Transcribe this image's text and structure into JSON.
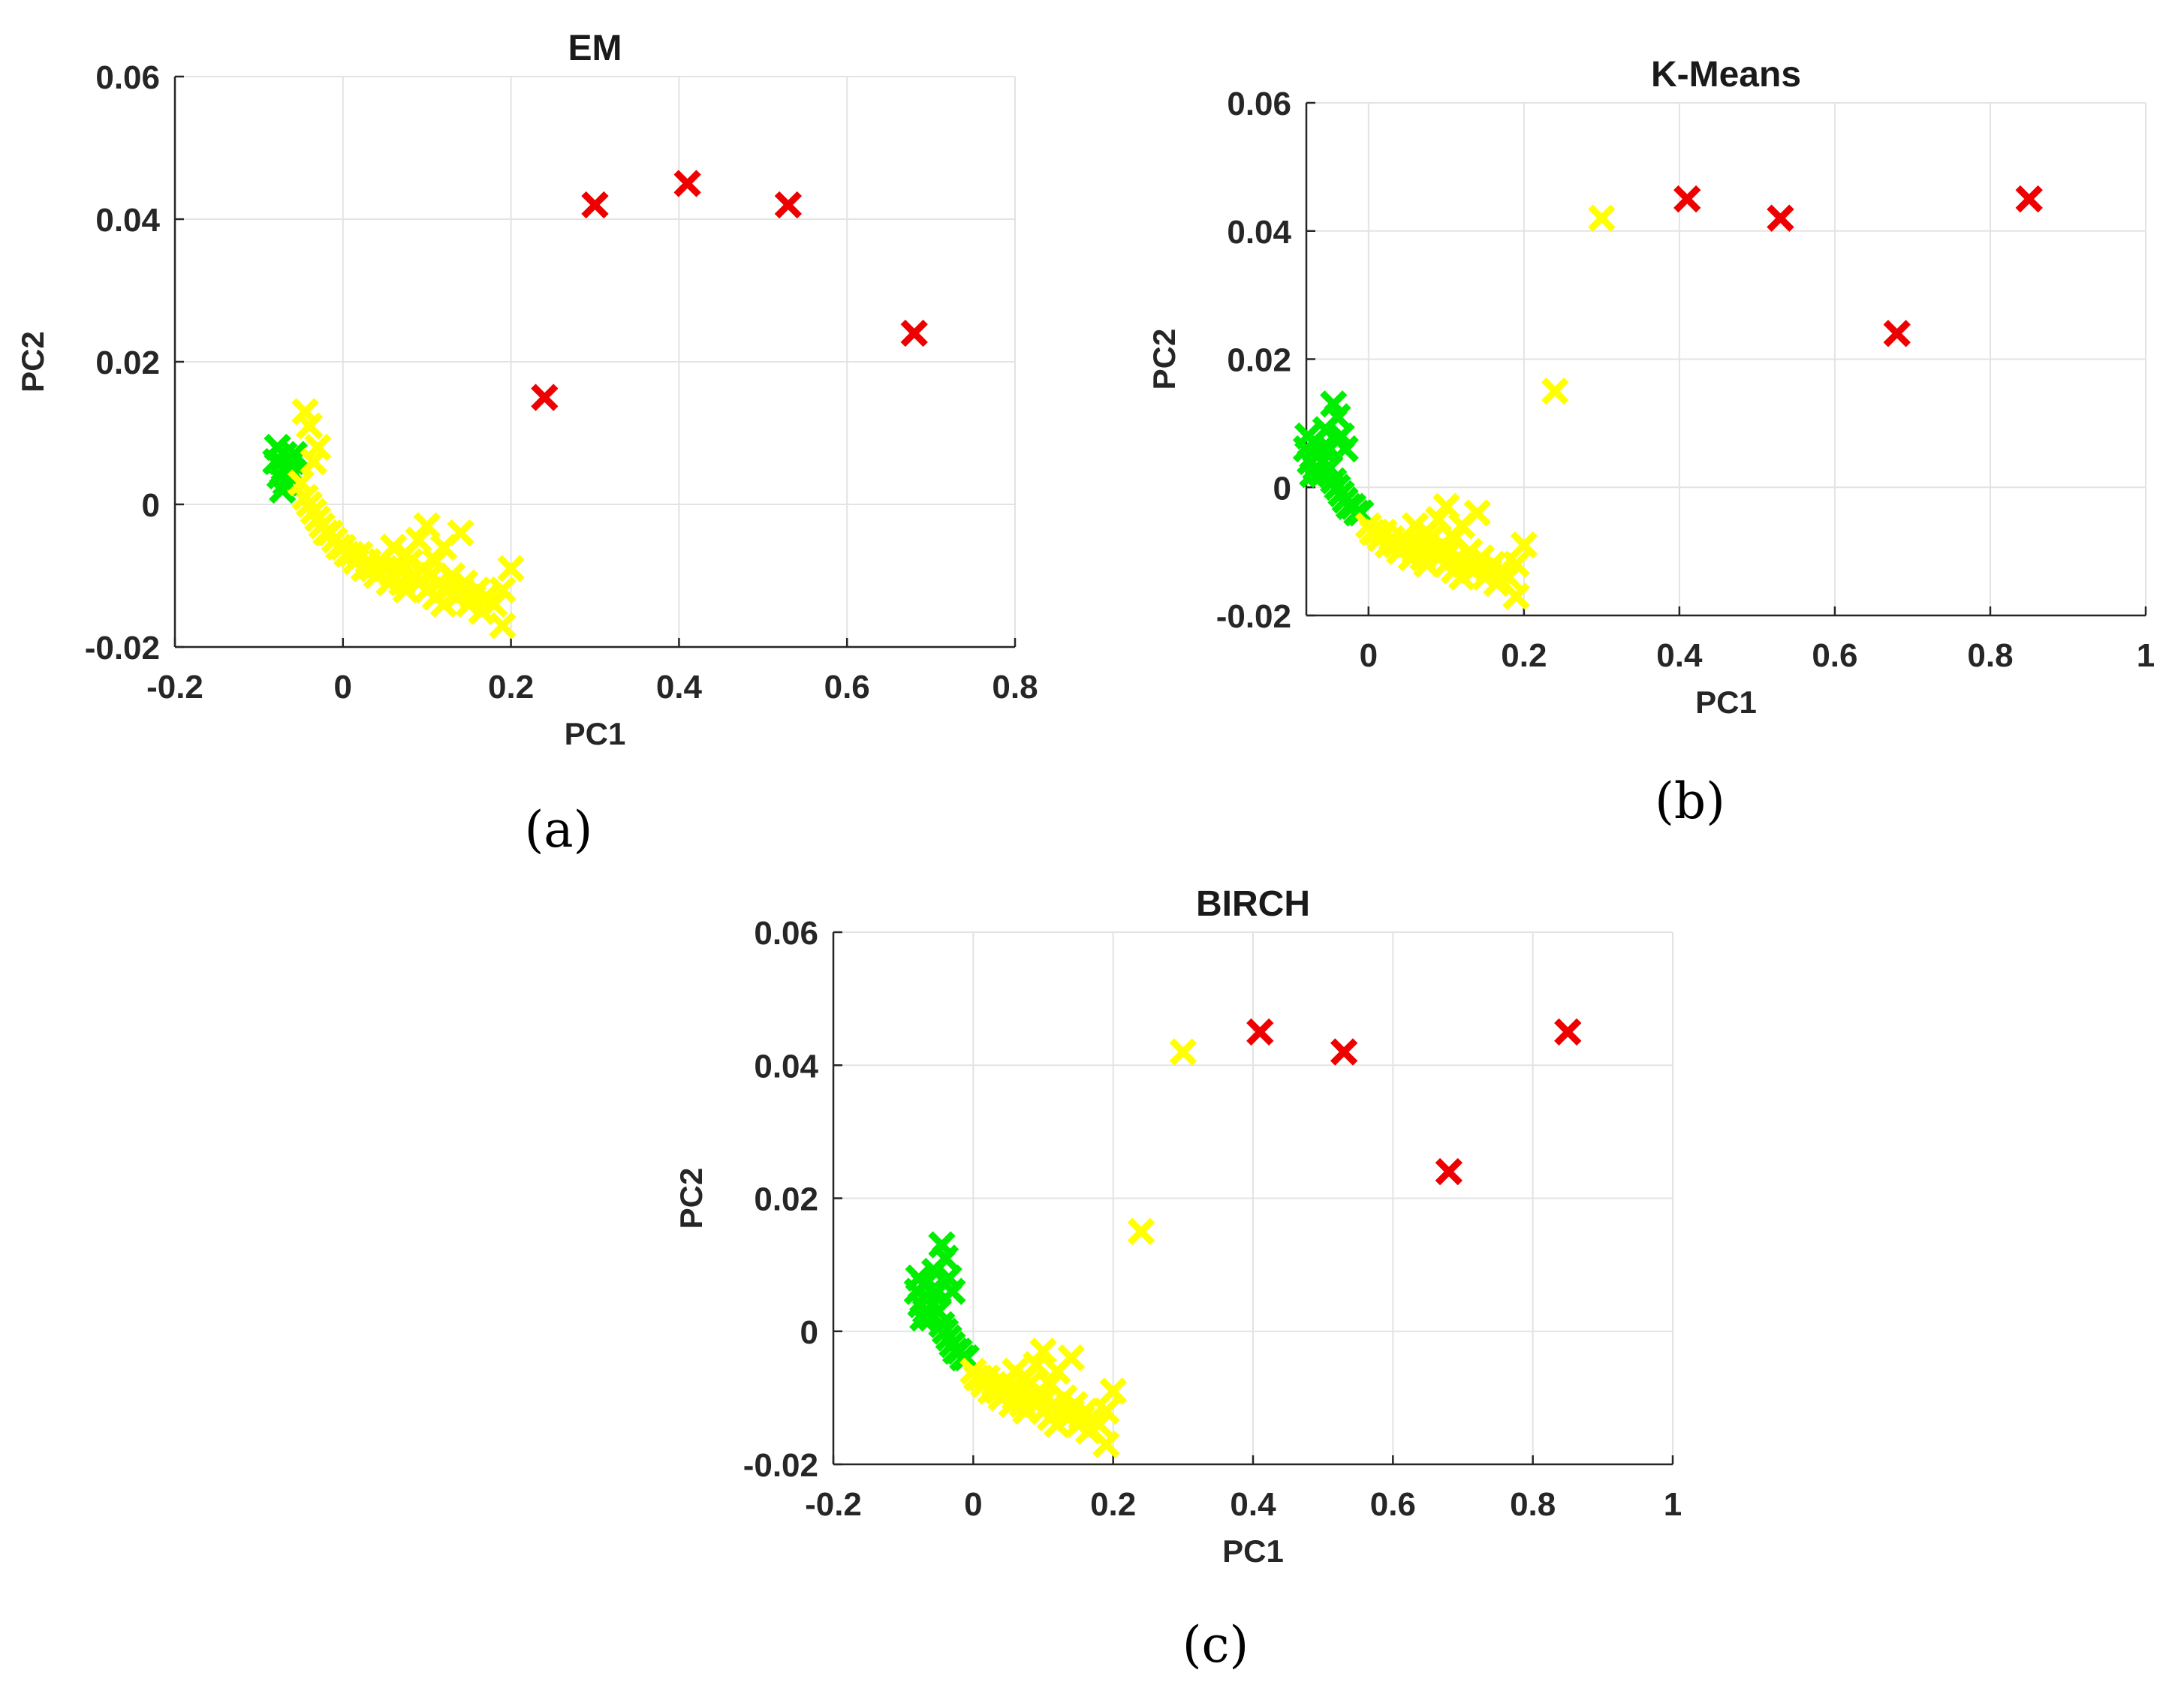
{
  "colors": {
    "cluster_green": "#00ee00",
    "cluster_yellow": "#ffff00",
    "cluster_red": "#ee0000"
  },
  "chart_data": [
    {
      "type": "scatter",
      "panel": "(a)",
      "title": "EM",
      "xlabel": "PC1",
      "ylabel": "PC2",
      "xlim": [
        -0.2,
        0.8
      ],
      "ylim": [
        -0.02,
        0.06
      ],
      "xticks": [
        -0.2,
        0,
        0.2,
        0.4,
        0.6,
        0.8
      ],
      "xtick_labels": [
        "-0.2",
        "0",
        "0.2",
        "0.4",
        "0.6",
        "0.8"
      ],
      "yticks": [
        -0.02,
        0,
        0.02,
        0.04,
        0.06
      ],
      "ytick_labels": [
        "-0.02",
        "0",
        "0.02",
        "0.04",
        "0.06"
      ],
      "grid": true,
      "marker": "x",
      "series": [
        {
          "name": "green cluster",
          "color": "#00ee00",
          "points": [
            [
              -0.08,
              0.006
            ],
            [
              -0.075,
              0.004
            ],
            [
              -0.07,
              0.007
            ],
            [
              -0.065,
              0.005
            ],
            [
              -0.068,
              0.003
            ],
            [
              -0.06,
              0.006
            ],
            [
              -0.078,
              0.008
            ],
            [
              -0.072,
              0.002
            ],
            [
              -0.062,
              0.004
            ],
            [
              -0.07,
              0.005
            ],
            [
              -0.058,
              0.007
            ],
            [
              -0.074,
              0.006
            ]
          ]
        },
        {
          "name": "yellow cluster",
          "color": "#ffff00",
          "points": [
            [
              -0.045,
              0.013
            ],
            [
              -0.04,
              0.011
            ],
            [
              -0.03,
              0.008
            ],
            [
              -0.035,
              0.006
            ],
            [
              -0.05,
              0.003
            ],
            [
              -0.045,
              0.001
            ],
            [
              -0.04,
              0.0
            ],
            [
              -0.035,
              -0.001
            ],
            [
              -0.03,
              -0.002
            ],
            [
              -0.025,
              -0.003
            ],
            [
              -0.02,
              -0.004
            ],
            [
              -0.015,
              -0.004
            ],
            [
              -0.01,
              -0.005
            ],
            [
              -0.005,
              -0.006
            ],
            [
              0.0,
              -0.006
            ],
            [
              0.005,
              -0.007
            ],
            [
              0.01,
              -0.007
            ],
            [
              0.015,
              -0.008
            ],
            [
              0.02,
              -0.007
            ],
            [
              0.025,
              -0.009
            ],
            [
              0.03,
              -0.008
            ],
            [
              0.035,
              -0.009
            ],
            [
              0.04,
              -0.01
            ],
            [
              0.045,
              -0.008
            ],
            [
              0.05,
              -0.009
            ],
            [
              0.055,
              -0.011
            ],
            [
              0.06,
              -0.01
            ],
            [
              0.065,
              -0.009
            ],
            [
              0.07,
              -0.011
            ],
            [
              0.075,
              -0.012
            ],
            [
              0.08,
              -0.008
            ],
            [
              0.085,
              -0.01
            ],
            [
              0.09,
              -0.011
            ],
            [
              0.095,
              -0.009
            ],
            [
              0.1,
              -0.012
            ],
            [
              0.105,
              -0.01
            ],
            [
              0.11,
              -0.013
            ],
            [
              0.115,
              -0.011
            ],
            [
              0.12,
              -0.014
            ],
            [
              0.125,
              -0.012
            ],
            [
              0.13,
              -0.01
            ],
            [
              0.135,
              -0.013
            ],
            [
              0.14,
              -0.012
            ],
            [
              0.145,
              -0.011
            ],
            [
              0.15,
              -0.014
            ],
            [
              0.155,
              -0.013
            ],
            [
              0.16,
              -0.012
            ],
            [
              0.165,
              -0.015
            ],
            [
              0.17,
              -0.013
            ],
            [
              0.18,
              -0.014
            ],
            [
              0.19,
              -0.012
            ],
            [
              0.2,
              -0.009
            ],
            [
              0.19,
              -0.017
            ],
            [
              0.1,
              -0.003
            ],
            [
              0.09,
              -0.005
            ],
            [
              0.14,
              -0.004
            ],
            [
              0.12,
              -0.006
            ],
            [
              0.075,
              -0.007
            ],
            [
              0.06,
              -0.006
            ],
            [
              0.11,
              -0.008
            ]
          ]
        },
        {
          "name": "red cluster",
          "color": "#ee0000",
          "points": [
            [
              0.24,
              0.015
            ],
            [
              0.3,
              0.042
            ],
            [
              0.41,
              0.045
            ],
            [
              0.53,
              0.042
            ],
            [
              0.68,
              0.024
            ]
          ]
        }
      ]
    },
    {
      "type": "scatter",
      "panel": "(b)",
      "title": "K-Means",
      "xlabel": "PC1",
      "ylabel": "PC2",
      "xlim": [
        -0.08,
        1.0
      ],
      "ylim": [
        -0.02,
        0.06
      ],
      "xticks": [
        0,
        0.2,
        0.4,
        0.6,
        0.8,
        1
      ],
      "xtick_labels": [
        "0",
        "0.2",
        "0.4",
        "0.6",
        "0.8",
        "1"
      ],
      "yticks": [
        -0.02,
        0,
        0.02,
        0.04,
        0.06
      ],
      "ytick_labels": [
        "-0.02",
        "0",
        "0.02",
        "0.04",
        "0.06"
      ],
      "grid": true,
      "marker": "x",
      "series": [
        {
          "name": "green cluster",
          "color": "#00ee00",
          "points": [
            [
              -0.08,
              0.006
            ],
            [
              -0.075,
              0.004
            ],
            [
              -0.07,
              0.007
            ],
            [
              -0.065,
              0.005
            ],
            [
              -0.068,
              0.003
            ],
            [
              -0.06,
              0.006
            ],
            [
              -0.078,
              0.008
            ],
            [
              -0.072,
              0.002
            ],
            [
              -0.045,
              0.013
            ],
            [
              -0.04,
              0.011
            ],
            [
              -0.035,
              0.008
            ],
            [
              -0.03,
              0.006
            ],
            [
              -0.05,
              0.003
            ],
            [
              -0.045,
              0.001
            ],
            [
              -0.04,
              0.0
            ],
            [
              -0.035,
              -0.001
            ],
            [
              -0.03,
              -0.002
            ],
            [
              -0.025,
              -0.003
            ],
            [
              -0.02,
              -0.003
            ],
            [
              -0.015,
              -0.004
            ],
            [
              -0.01,
              -0.004
            ],
            [
              -0.055,
              0.009
            ],
            [
              -0.06,
              0.002
            ],
            [
              -0.05,
              0.006
            ]
          ]
        },
        {
          "name": "yellow cluster",
          "color": "#ffff00",
          "points": [
            [
              0.0,
              -0.006
            ],
            [
              0.005,
              -0.007
            ],
            [
              0.01,
              -0.007
            ],
            [
              0.015,
              -0.008
            ],
            [
              0.02,
              -0.007
            ],
            [
              0.025,
              -0.009
            ],
            [
              0.03,
              -0.008
            ],
            [
              0.035,
              -0.009
            ],
            [
              0.04,
              -0.01
            ],
            [
              0.045,
              -0.008
            ],
            [
              0.05,
              -0.009
            ],
            [
              0.055,
              -0.011
            ],
            [
              0.06,
              -0.01
            ],
            [
              0.065,
              -0.009
            ],
            [
              0.07,
              -0.011
            ],
            [
              0.075,
              -0.012
            ],
            [
              0.08,
              -0.008
            ],
            [
              0.085,
              -0.01
            ],
            [
              0.09,
              -0.011
            ],
            [
              0.095,
              -0.009
            ],
            [
              0.1,
              -0.012
            ],
            [
              0.105,
              -0.01
            ],
            [
              0.11,
              -0.013
            ],
            [
              0.115,
              -0.011
            ],
            [
              0.12,
              -0.014
            ],
            [
              0.125,
              -0.012
            ],
            [
              0.13,
              -0.01
            ],
            [
              0.135,
              -0.013
            ],
            [
              0.14,
              -0.012
            ],
            [
              0.145,
              -0.011
            ],
            [
              0.15,
              -0.014
            ],
            [
              0.155,
              -0.013
            ],
            [
              0.16,
              -0.012
            ],
            [
              0.165,
              -0.015
            ],
            [
              0.17,
              -0.013
            ],
            [
              0.18,
              -0.014
            ],
            [
              0.19,
              -0.012
            ],
            [
              0.2,
              -0.009
            ],
            [
              0.19,
              -0.017
            ],
            [
              0.1,
              -0.003
            ],
            [
              0.09,
              -0.005
            ],
            [
              0.14,
              -0.004
            ],
            [
              0.12,
              -0.006
            ],
            [
              0.075,
              -0.007
            ],
            [
              0.06,
              -0.006
            ],
            [
              0.11,
              -0.008
            ],
            [
              0.24,
              0.015
            ],
            [
              0.3,
              0.042
            ]
          ]
        },
        {
          "name": "red cluster",
          "color": "#ee0000",
          "points": [
            [
              0.41,
              0.045
            ],
            [
              0.53,
              0.042
            ],
            [
              0.68,
              0.024
            ],
            [
              0.85,
              0.045
            ]
          ]
        }
      ]
    },
    {
      "type": "scatter",
      "panel": "(c)",
      "title": "BIRCH",
      "xlabel": "PC1",
      "ylabel": "PC2",
      "xlim": [
        -0.2,
        1.0
      ],
      "ylim": [
        -0.02,
        0.06
      ],
      "xticks": [
        -0.2,
        0,
        0.2,
        0.4,
        0.6,
        0.8,
        1
      ],
      "xtick_labels": [
        "-0.2",
        "0",
        "0.2",
        "0.4",
        "0.6",
        "0.8",
        "1"
      ],
      "yticks": [
        -0.02,
        0,
        0.02,
        0.04,
        0.06
      ],
      "ytick_labels": [
        "-0.02",
        "0",
        "0.02",
        "0.04",
        "0.06"
      ],
      "grid": true,
      "marker": "x",
      "series": [
        {
          "name": "green cluster",
          "color": "#00ee00",
          "points": [
            [
              -0.08,
              0.006
            ],
            [
              -0.075,
              0.004
            ],
            [
              -0.07,
              0.007
            ],
            [
              -0.065,
              0.005
            ],
            [
              -0.068,
              0.003
            ],
            [
              -0.06,
              0.006
            ],
            [
              -0.078,
              0.008
            ],
            [
              -0.072,
              0.002
            ],
            [
              -0.045,
              0.013
            ],
            [
              -0.04,
              0.011
            ],
            [
              -0.035,
              0.008
            ],
            [
              -0.03,
              0.006
            ],
            [
              -0.05,
              0.003
            ],
            [
              -0.045,
              0.001
            ],
            [
              -0.04,
              0.0
            ],
            [
              -0.035,
              -0.001
            ],
            [
              -0.03,
              -0.002
            ],
            [
              -0.025,
              -0.003
            ],
            [
              -0.02,
              -0.003
            ],
            [
              -0.015,
              -0.004
            ],
            [
              -0.01,
              -0.004
            ],
            [
              -0.055,
              0.009
            ],
            [
              -0.06,
              0.002
            ],
            [
              -0.05,
              0.006
            ]
          ]
        },
        {
          "name": "yellow cluster",
          "color": "#ffff00",
          "points": [
            [
              0.0,
              -0.006
            ],
            [
              0.005,
              -0.007
            ],
            [
              0.01,
              -0.007
            ],
            [
              0.015,
              -0.008
            ],
            [
              0.02,
              -0.007
            ],
            [
              0.025,
              -0.009
            ],
            [
              0.03,
              -0.008
            ],
            [
              0.035,
              -0.009
            ],
            [
              0.04,
              -0.01
            ],
            [
              0.045,
              -0.008
            ],
            [
              0.05,
              -0.009
            ],
            [
              0.055,
              -0.011
            ],
            [
              0.06,
              -0.01
            ],
            [
              0.065,
              -0.009
            ],
            [
              0.07,
              -0.011
            ],
            [
              0.075,
              -0.012
            ],
            [
              0.08,
              -0.008
            ],
            [
              0.085,
              -0.01
            ],
            [
              0.09,
              -0.011
            ],
            [
              0.095,
              -0.009
            ],
            [
              0.1,
              -0.012
            ],
            [
              0.105,
              -0.01
            ],
            [
              0.11,
              -0.013
            ],
            [
              0.115,
              -0.011
            ],
            [
              0.12,
              -0.014
            ],
            [
              0.125,
              -0.012
            ],
            [
              0.13,
              -0.01
            ],
            [
              0.135,
              -0.013
            ],
            [
              0.14,
              -0.012
            ],
            [
              0.145,
              -0.011
            ],
            [
              0.15,
              -0.014
            ],
            [
              0.155,
              -0.013
            ],
            [
              0.16,
              -0.012
            ],
            [
              0.165,
              -0.015
            ],
            [
              0.17,
              -0.013
            ],
            [
              0.18,
              -0.014
            ],
            [
              0.19,
              -0.012
            ],
            [
              0.2,
              -0.009
            ],
            [
              0.19,
              -0.017
            ],
            [
              0.1,
              -0.003
            ],
            [
              0.09,
              -0.005
            ],
            [
              0.14,
              -0.004
            ],
            [
              0.12,
              -0.006
            ],
            [
              0.075,
              -0.007
            ],
            [
              0.06,
              -0.006
            ],
            [
              0.11,
              -0.008
            ],
            [
              0.24,
              0.015
            ],
            [
              0.3,
              0.042
            ]
          ]
        },
        {
          "name": "red cluster",
          "color": "#ee0000",
          "points": [
            [
              0.41,
              0.045
            ],
            [
              0.53,
              0.042
            ],
            [
              0.68,
              0.024
            ],
            [
              0.85,
              0.045
            ]
          ]
        }
      ]
    }
  ]
}
